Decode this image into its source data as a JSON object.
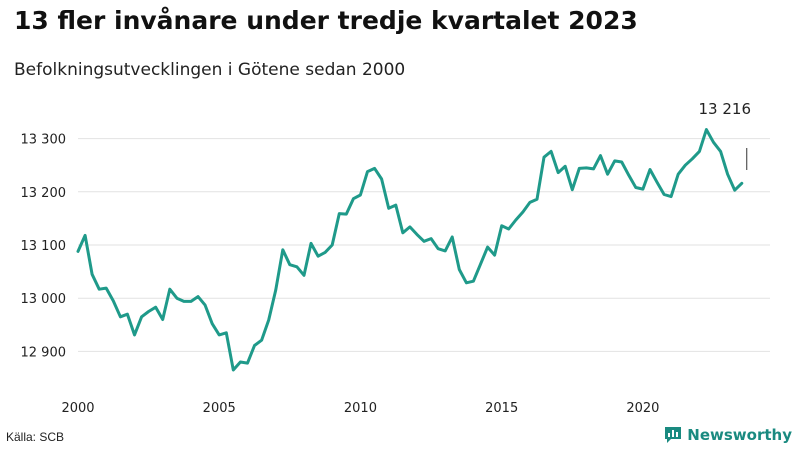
{
  "chart_data": {
    "type": "line",
    "title": "13 fler invånare under tredje kvartalet 2023",
    "subtitle": "Befolkningsutvecklingen i Götene sedan 2000",
    "xlabel": "",
    "ylabel": "",
    "x_ticks": [
      "2000",
      "2005",
      "2010",
      "2015",
      "2020"
    ],
    "y_ticks": [
      12900,
      13000,
      13100,
      13200,
      13300
    ],
    "y_tick_labels": [
      "12 900",
      "13 000",
      "13 100",
      "13 200",
      "13 300"
    ],
    "xlim": [
      2000,
      2024.5
    ],
    "ylim": [
      12850,
      13350
    ],
    "grid": "horizontal",
    "legend": "none",
    "line_color": "#1f9a8a",
    "annotation": {
      "label": "13 216",
      "x": 2023.5,
      "y": 13216
    },
    "series": [
      {
        "x": [
          2000.0,
          2000.25,
          2000.5,
          2000.75,
          2001.0,
          2001.25,
          2001.5,
          2001.75,
          2002.0,
          2002.25,
          2002.5,
          2002.75,
          2003.0,
          2003.25,
          2003.5,
          2003.75,
          2004.0,
          2004.25,
          2004.5,
          2004.75,
          2005.0,
          2005.25,
          2005.5,
          2005.75,
          2006.0,
          2006.25,
          2006.5,
          2006.75,
          2007.0,
          2007.25,
          2007.5,
          2007.75,
          2008.0,
          2008.25,
          2008.5,
          2008.75,
          2009.0,
          2009.25,
          2009.5,
          2009.75,
          2010.0,
          2010.25,
          2010.5,
          2010.75,
          2011.0,
          2011.25,
          2011.5,
          2011.75,
          2012.0,
          2012.25,
          2012.5,
          2012.75,
          2013.0,
          2013.25,
          2013.5,
          2013.75,
          2014.0,
          2014.25,
          2014.5,
          2014.75,
          2015.0,
          2015.25,
          2015.5,
          2015.75,
          2016.0,
          2016.25,
          2016.5,
          2016.75,
          2017.0,
          2017.25,
          2017.5,
          2017.75,
          2018.0,
          2018.25,
          2018.5,
          2018.75,
          2019.0,
          2019.25,
          2019.5,
          2019.75,
          2020.0,
          2020.25,
          2020.5,
          2020.75,
          2021.0,
          2021.25,
          2021.5,
          2021.75,
          2022.0,
          2022.25,
          2022.5,
          2022.75,
          2023.0,
          2023.25,
          2023.5
        ],
        "values": [
          13088,
          13118,
          13045,
          13017,
          13019,
          12995,
          12965,
          12970,
          12931,
          12965,
          12975,
          12983,
          12960,
          13017,
          13000,
          12994,
          12994,
          13003,
          12987,
          12952,
          12931,
          12935,
          12865,
          12880,
          12878,
          12911,
          12921,
          12959,
          13015,
          13091,
          13063,
          13059,
          13043,
          13103,
          13079,
          13086,
          13100,
          13159,
          13158,
          13187,
          13194,
          13238,
          13244,
          13224,
          13169,
          13175,
          13123,
          13134,
          13120,
          13107,
          13112,
          13093,
          13089,
          13115,
          13054,
          13029,
          13032,
          13064,
          13096,
          13081,
          13136,
          13130,
          13147,
          13162,
          13180,
          13186,
          13265,
          13276,
          13236,
          13248,
          13204,
          13244,
          13245,
          13243,
          13268,
          13233,
          13258,
          13256,
          13231,
          13208,
          13205,
          13242,
          13218,
          13195,
          13191,
          13233,
          13250,
          13262,
          13276,
          13317,
          13293,
          13276,
          13233,
          13203,
          13216
        ]
      }
    ]
  },
  "footer": {
    "source": "Källa: SCB",
    "brand_icon": "bar-chart-icon",
    "brand": "Newsworthy"
  }
}
